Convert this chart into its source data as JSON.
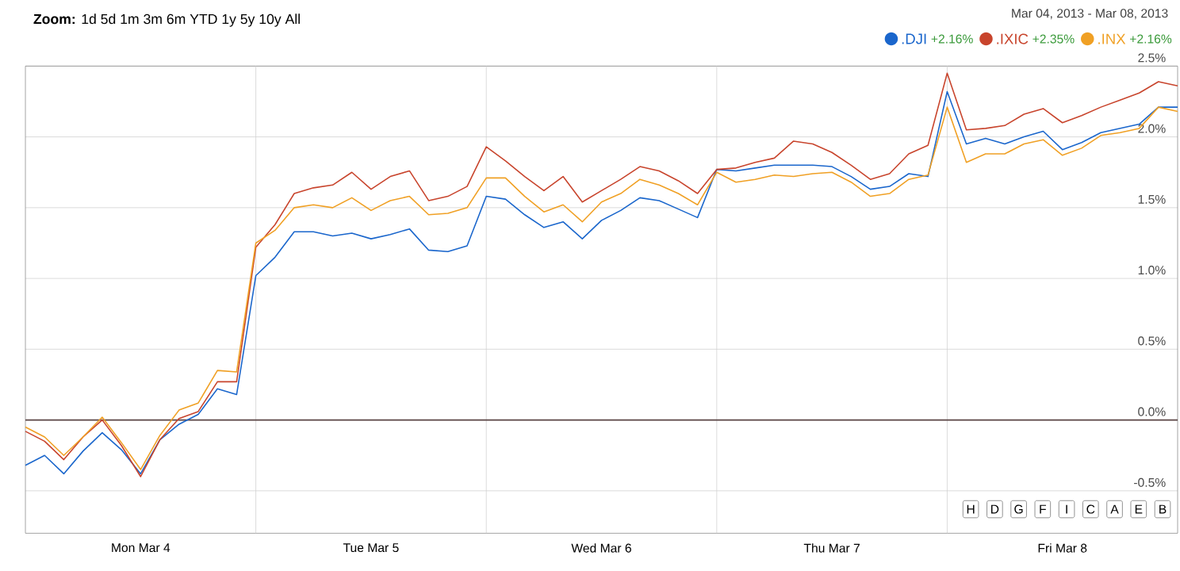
{
  "chart_data": {
    "type": "line",
    "categories": [
      null,
      null,
      null,
      null,
      null,
      null,
      "Mon Mar 4",
      null,
      null,
      null,
      null,
      null,
      null,
      null,
      null,
      null,
      null,
      null,
      "Tue Mar 5",
      null,
      null,
      null,
      null,
      null,
      null,
      null,
      null,
      null,
      null,
      null,
      "Wed Mar 6",
      null,
      null,
      null,
      null,
      null,
      null,
      null,
      null,
      null,
      null,
      null,
      "Thu Mar 7",
      null,
      null,
      null,
      null,
      null,
      null,
      null,
      null,
      null,
      null,
      null,
      "Fri Mar 8",
      null,
      null,
      null,
      null,
      null,
      null
    ],
    "series": [
      {
        "name": ".DJI",
        "color": "#1a66cc",
        "values": [
          -0.32,
          -0.25,
          -0.38,
          -0.22,
          -0.09,
          -0.21,
          -0.38,
          -0.14,
          -0.03,
          0.04,
          0.22,
          0.18,
          1.02,
          1.15,
          1.33,
          1.33,
          1.3,
          1.32,
          1.28,
          1.31,
          1.35,
          1.2,
          1.19,
          1.23,
          1.58,
          1.56,
          1.45,
          1.36,
          1.4,
          1.28,
          1.41,
          1.48,
          1.57,
          1.55,
          1.49,
          1.43,
          1.77,
          1.76,
          1.78,
          1.8,
          1.8,
          1.8,
          1.79,
          1.72,
          1.63,
          1.65,
          1.74,
          1.72,
          2.32,
          1.95,
          1.99,
          1.95,
          2.0,
          2.04,
          1.91,
          1.96,
          2.03,
          2.06,
          2.09,
          2.21,
          2.21
        ]
      },
      {
        "name": ".IXIC",
        "color": "#c8442c",
        "values": [
          -0.08,
          -0.15,
          -0.28,
          -0.12,
          0.0,
          -0.18,
          -0.4,
          -0.14,
          0.01,
          0.06,
          0.27,
          0.27,
          1.22,
          1.38,
          1.6,
          1.64,
          1.66,
          1.75,
          1.63,
          1.72,
          1.76,
          1.55,
          1.58,
          1.65,
          1.93,
          1.83,
          1.72,
          1.62,
          1.72,
          1.54,
          1.62,
          1.7,
          1.79,
          1.76,
          1.69,
          1.6,
          1.77,
          1.78,
          1.82,
          1.85,
          1.97,
          1.95,
          1.89,
          1.8,
          1.7,
          1.74,
          1.88,
          1.94,
          2.45,
          2.05,
          2.06,
          2.08,
          2.16,
          2.2,
          2.1,
          2.15,
          2.21,
          2.26,
          2.31,
          2.39,
          2.36
        ]
      },
      {
        "name": ".INX",
        "color": "#f0a024",
        "values": [
          -0.05,
          -0.12,
          -0.25,
          -0.12,
          0.02,
          -0.16,
          -0.35,
          -0.11,
          0.07,
          0.12,
          0.35,
          0.34,
          1.25,
          1.34,
          1.5,
          1.52,
          1.5,
          1.57,
          1.48,
          1.55,
          1.58,
          1.45,
          1.46,
          1.5,
          1.71,
          1.71,
          1.58,
          1.47,
          1.52,
          1.4,
          1.54,
          1.6,
          1.7,
          1.66,
          1.6,
          1.52,
          1.75,
          1.68,
          1.7,
          1.73,
          1.72,
          1.74,
          1.75,
          1.68,
          1.58,
          1.6,
          1.7,
          1.73,
          2.21,
          1.82,
          1.88,
          1.88,
          1.95,
          1.98,
          1.87,
          1.92,
          2.01,
          2.03,
          2.06,
          2.21,
          2.18
        ]
      }
    ],
    "ylim": [
      -0.8,
      2.5
    ],
    "yticks": [
      {
        "value": -0.5,
        "label": "-0.5%"
      },
      {
        "value": 0,
        "label": "0.0%"
      },
      {
        "value": 0.5,
        "label": "0.5%"
      },
      {
        "value": 1,
        "label": "1.0%"
      },
      {
        "value": 1.5,
        "label": "1.5%"
      },
      {
        "value": 2,
        "label": "2.0%"
      },
      {
        "value": 2.5,
        "label": "2.5%"
      }
    ],
    "grid": true,
    "legend": "top right",
    "ref_lines": [
      {
        "axis": "y",
        "value": 0,
        "color": "#5a4444"
      }
    ],
    "annotations": [
      "**Zoom:** 1d 5d 1m 3m 6m YTD 1y 5y 10y All",
      "Mar 04, 2013  -  Mar 08, 2013",
      "+2.16%",
      "+2.35%",
      "+2.16%",
      "H",
      "D",
      "G",
      "F",
      "I",
      "C",
      "A",
      "E",
      "B"
    ]
  }
}
